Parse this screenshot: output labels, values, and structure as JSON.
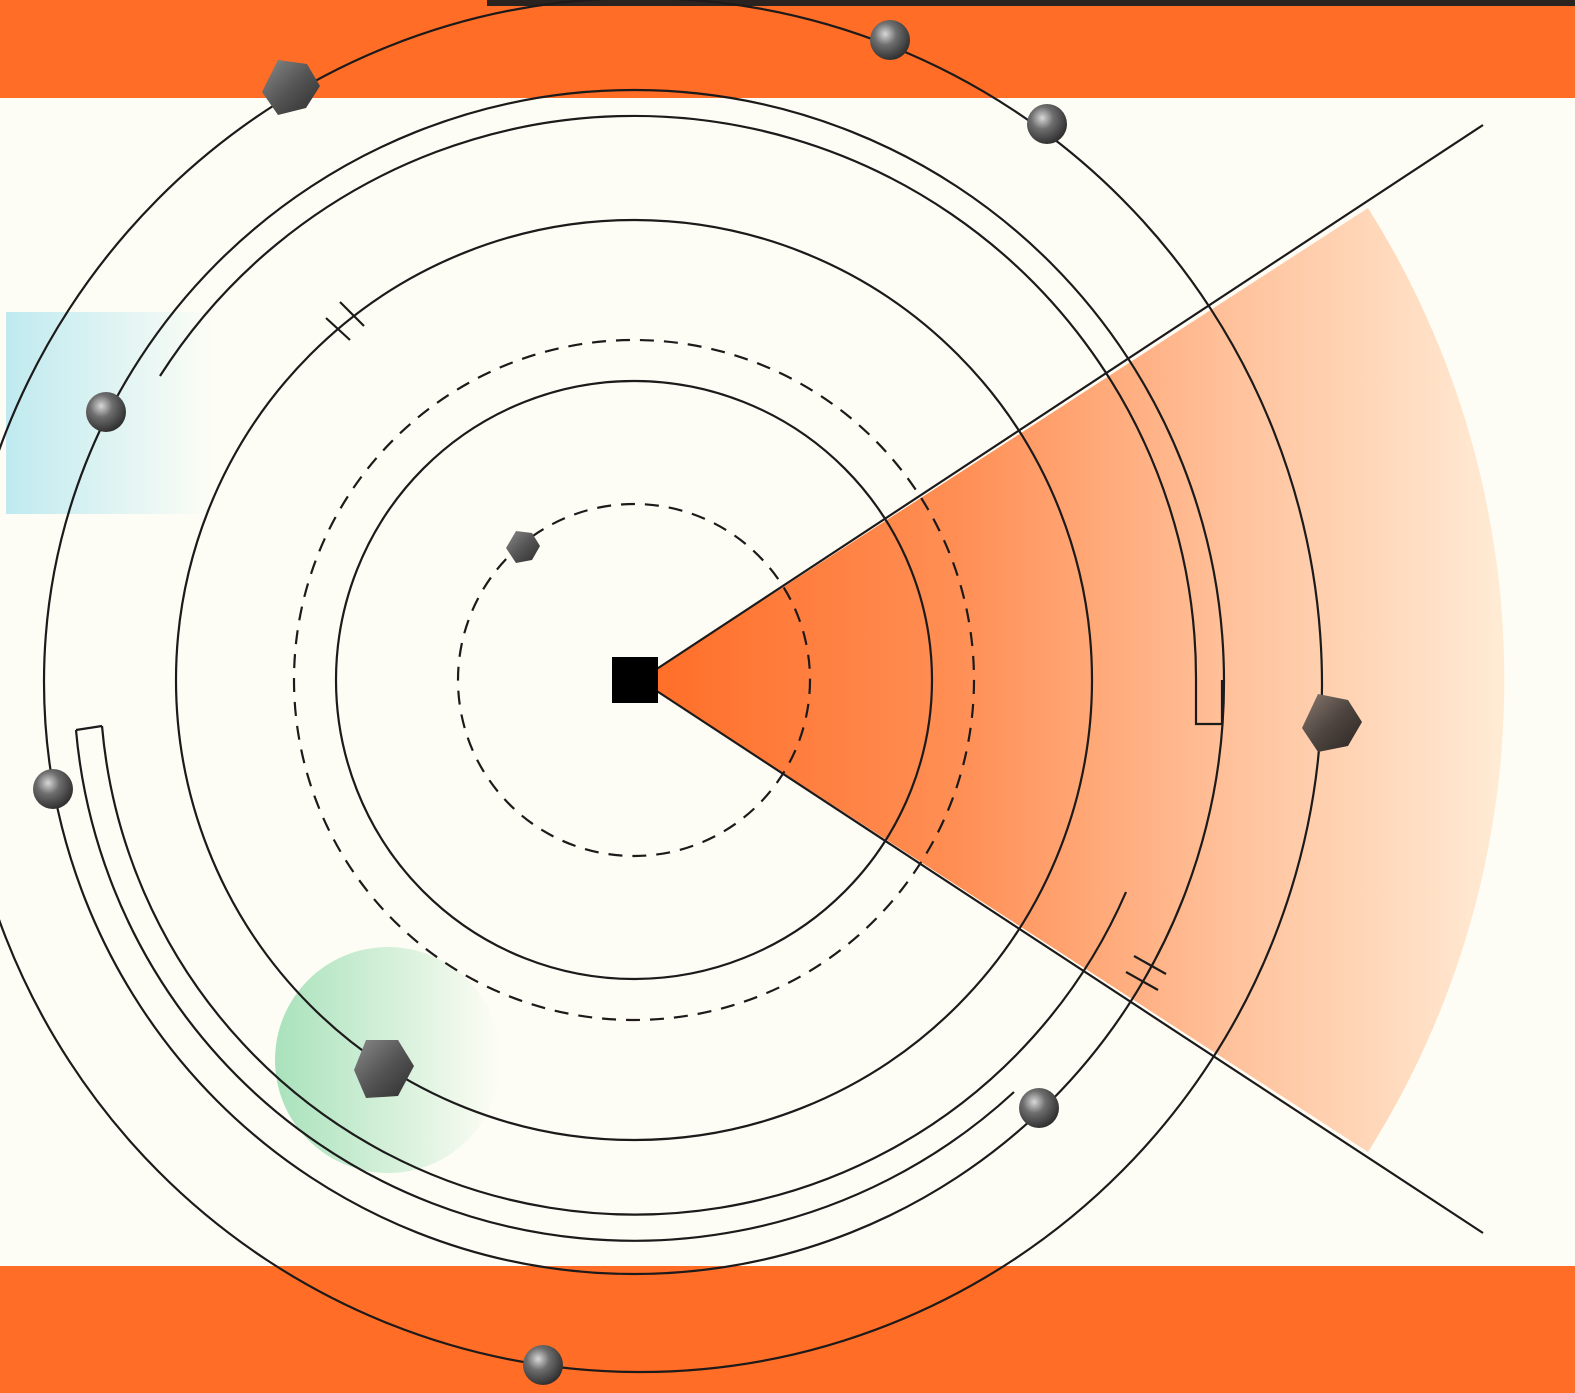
{
  "title": "",
  "colors": {
    "background": "#fefdf5",
    "accent": "#ff6d27",
    "line": "#1c1a1a",
    "header_dark": "#2a2320",
    "blue_tint": "#bfeaf0",
    "green_tint": "#b3e6c4",
    "node": "#5a5a5a"
  },
  "icons": {
    "center": "square-center-icon",
    "sphere": "sphere-node-icon",
    "hexagon": "hexagon-node-icon"
  }
}
